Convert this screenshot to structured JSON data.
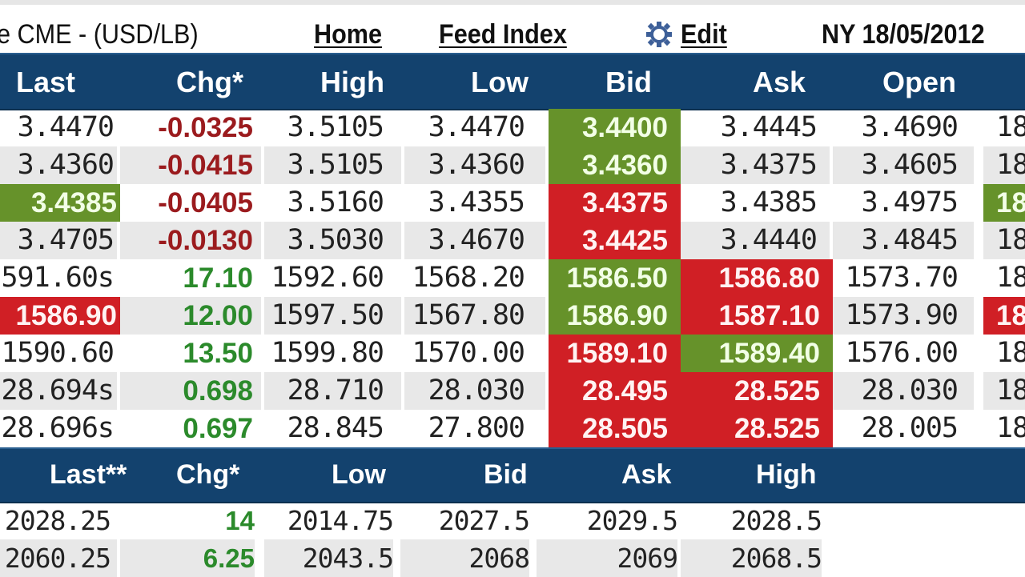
{
  "title_bar": {
    "title": "e CME - (USD/LB)",
    "links": {
      "home": "Home",
      "feed_index": "Feed Index",
      "edit": "Edit"
    },
    "gear_icon": "gear-icon",
    "location_date": "NY 18/05/2012"
  },
  "colors": {
    "header_bg": "#13426e",
    "up_bg": "#66922a",
    "down_bg": "#d01f25",
    "neg_text": "#9b1b1e",
    "pos_text": "#2b8a2b",
    "stripe": "#e8e8e8"
  },
  "main_table": {
    "columns": [
      "Last",
      "Chg*",
      "High",
      "Low",
      "Bid",
      "Ask",
      "Open",
      ""
    ],
    "rows": [
      {
        "last": "3.4470",
        "chg": "-0.0325",
        "high": "3.5105",
        "low": "3.4470",
        "bid": "3.4400",
        "ask": "3.4445",
        "open": "3.4690",
        "next": "18",
        "flags": {
          "last": "",
          "bid": "g",
          "ask": "",
          "next": ""
        },
        "chg_dir": "neg"
      },
      {
        "last": "3.4360",
        "chg": "-0.0415",
        "high": "3.5105",
        "low": "3.4360",
        "bid": "3.4360",
        "ask": "3.4375",
        "open": "3.4605",
        "next": "18",
        "flags": {
          "last": "",
          "bid": "g",
          "ask": "",
          "next": ""
        },
        "chg_dir": "neg"
      },
      {
        "last": "3.4385",
        "chg": "-0.0405",
        "high": "3.5160",
        "low": "3.4355",
        "bid": "3.4375",
        "ask": "3.4385",
        "open": "3.4975",
        "next": "18",
        "flags": {
          "last": "g",
          "bid": "r",
          "ask": "",
          "next": "g"
        },
        "chg_dir": "neg"
      },
      {
        "last": "3.4705",
        "chg": "-0.0130",
        "high": "3.5030",
        "low": "3.4670",
        "bid": "3.4425",
        "ask": "3.4440",
        "open": "3.4845",
        "next": "18",
        "flags": {
          "last": "",
          "bid": "r",
          "ask": "",
          "next": ""
        },
        "chg_dir": "neg"
      },
      {
        "last": "591.60s",
        "chg": "17.10",
        "high": "1592.60",
        "low": "1568.20",
        "bid": "1586.50",
        "ask": "1586.80",
        "open": "1573.70",
        "next": "18",
        "flags": {
          "last": "",
          "bid": "g",
          "ask": "r",
          "next": ""
        },
        "chg_dir": "pos"
      },
      {
        "last": "1586.90",
        "chg": "12.00",
        "high": "1597.50",
        "low": "1567.80",
        "bid": "1586.90",
        "ask": "1587.10",
        "open": "1573.90",
        "next": "18",
        "flags": {
          "last": "r",
          "bid": "g",
          "ask": "r",
          "next": "r"
        },
        "chg_dir": "pos"
      },
      {
        "last": "1590.60",
        "chg": "13.50",
        "high": "1599.80",
        "low": "1570.00",
        "bid": "1589.10",
        "ask": "1589.40",
        "open": "1576.00",
        "next": "18",
        "flags": {
          "last": "",
          "bid": "r",
          "ask": "g",
          "next": ""
        },
        "chg_dir": "pos"
      },
      {
        "last": "28.694s",
        "chg": "0.698",
        "high": "28.710",
        "low": "28.030",
        "bid": "28.495",
        "ask": "28.525",
        "open": "28.030",
        "next": "18",
        "flags": {
          "last": "",
          "bid": "r",
          "ask": "r",
          "next": ""
        },
        "chg_dir": "pos"
      },
      {
        "last": "28.696s",
        "chg": "0.697",
        "high": "28.845",
        "low": "27.800",
        "bid": "28.505",
        "ask": "28.525",
        "open": "28.005",
        "next": "18",
        "flags": {
          "last": "",
          "bid": "r",
          "ask": "r",
          "next": ""
        },
        "chg_dir": "pos"
      }
    ]
  },
  "index_table": {
    "columns": [
      "Last**",
      "Chg*",
      "Low",
      "Bid",
      "Ask",
      "High"
    ],
    "rows": [
      {
        "last": "2028.25",
        "chg": "14",
        "low": "2014.75",
        "bid": "2027.5",
        "ask": "2029.5",
        "high": "2028.5"
      },
      {
        "last": "2060.25",
        "chg": "6.25",
        "low": "2043.5",
        "bid": "2068",
        "ask": "2069",
        "high": "2068.5"
      }
    ]
  }
}
